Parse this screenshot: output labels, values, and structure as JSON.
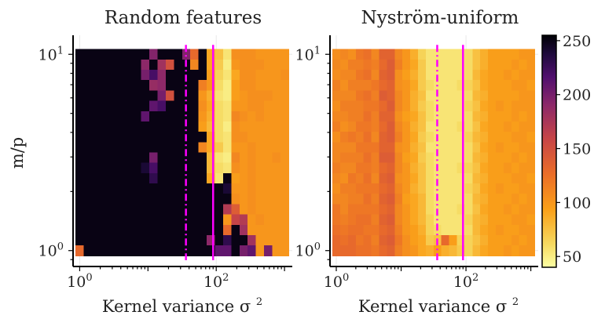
{
  "chart_data": [
    {
      "type": "heatmap",
      "title": "Random features",
      "xlabel": "Kernel variance σ²",
      "ylabel": "m/p",
      "xscale": "log",
      "yscale": "log",
      "xlim": [
        0.8,
        1300
      ],
      "ylim": [
        0.83,
        12.5
      ],
      "xticks": [
        {
          "base": "10",
          "exp": "0",
          "value": 1
        },
        {
          "base": "10",
          "exp": "2",
          "value": 100
        }
      ],
      "yticks": [
        {
          "base": "10",
          "exp": "0",
          "value": 1
        },
        {
          "base": "10",
          "exp": "1",
          "value": 10
        }
      ],
      "x_range": [
        1,
        1000
      ],
      "y_range": [
        1,
        10
      ],
      "grid": {
        "nx": 26,
        "ny": 20
      },
      "rows_top_to_bottom": [
        "250 250 250 250 250 250 250 250 250 195 250 250 250 195 130 250 90 75 55 105 105 105 100 100 100 100",
        "250 250 250 250 250 250 250 250 190 250 180 150 250 250 110 250 90 70 50 100 105 105 105 100 100 100",
        "250 250 250 250 250 250 250 250 200 220 190 250 250 250 250 250 95 65 55 90 105 105 100 100 100 105",
        "250 250 250 250 250 250 250 250 250 185 190 250 250 250 250 115 100 60 50 95 105 105 100 100 100 100",
        "250 250 250 250 250 250 250 250 250 250 200 150 250 250 250 100 85 55 50 95 100 105 105 105 100 100",
        "250 250 250 250 250 250 250 250 250 210 220 250 250 250 250 105 90 60 55 100 100 105 105 100 100 100",
        "250 250 250 250 250 250 250 250 210 250 250 250 250 250 250 100 85 60 55 110 105 100 105 100 100 100",
        "250 250 250 250 250 250 250 250 250 250 250 250 250 250 250 95 80 60 50 105 100 100 100 100 100 100",
        "250 250 250 250 250 250 250 250 250 250 250 250 250 250 250 250 90 60 55 105 105 100 100 100 100 100",
        "250 250 250 250 250 250 250 250 250 250 250 250 250 250 250 110 90 70 55 100 100 105 100 100 100 100",
        "250 250 250 250 250 250 250 250 250 200 250 250 250 250 250 250 80 55 50 110 100 105 100 100 105 100",
        "250 250 250 250 250 250 250 250 240 220 250 250 250 250 250 250 80 60 55 105 100 105 100 100 100 100",
        "250 250 250 250 250 250 250 250 250 230 250 250 250 250 250 250 90 55 250 95 100 105 100 100 100 100",
        "250 250 250 250 250 250 250 250 250 250 250 250 250 250 250 250 250 250 240 100 100 105 100 100 100 100",
        "250 250 250 250 250 250 250 250 250 250 250 250 250 250 250 250 250 250 250 105 100 105 100 100 100 100",
        "250 250 250 250 250 250 250 250 250 250 250 250 250 250 250 250 250 250 170 140 100 105 100 100 100 100",
        "250 250 250 250 250 250 250 250 250 250 250 250 250 250 250 250 250 250 100 160 170 100 105 100 100 100",
        "250 250 250 250 250 250 250 250 250 250 250 250 250 250 250 250 250 250 130 250 180 100 100 100 100 100",
        "250 250 250 250 250 250 250 250 250 250 250 250 250 250 250 250 190 250 230 250 250 180 100 100 100 100",
        "130 250 250 250 250 250 250 250 250 250 250 250 250 250 250 250 250 210 210 250 200 210 100 200 100 100"
      ],
      "vlines": [
        {
          "x": 36,
          "style": "dashdot"
        },
        {
          "x": 90,
          "style": "solid"
        }
      ]
    },
    {
      "type": "heatmap",
      "title": "Nyström-uniform",
      "xlabel": "Kernel variance σ²",
      "xscale": "log",
      "yscale": "log",
      "xlim": [
        0.8,
        1300
      ],
      "ylim": [
        0.83,
        12.5
      ],
      "xticks": [
        {
          "base": "10",
          "exp": "0",
          "value": 1
        },
        {
          "base": "10",
          "exp": "2",
          "value": 100
        }
      ],
      "yticks": [
        {
          "base": "10",
          "exp": "0",
          "value": 1
        },
        {
          "base": "10",
          "exp": "1",
          "value": 10
        }
      ],
      "x_range": [
        1,
        1000
      ],
      "y_range": [
        1,
        10
      ],
      "grid": {
        "nx": 26,
        "ny": 20
      },
      "rows_top_to_bottom": [
        "105 110 105 120 125 110 135 135 110 100 85 65 55 55 55 55 55 60 75 85 95 95 95 95 100 100",
        "110 105 115 115 120 115 130 140 115 100 90 70 55 55 55 55 55 60 75 85 95 95 95 100 95 100",
        "105 110 110 120 125 110 135 140 105 95 85 70 55 55 55 55 55 60 80 90 95 95 100 95 100 100",
        "115 105 115 115 115 120 130 135 105 100 90 70 60 55 55 55 60 65 75 90 95 95 95 100 100 95",
        "110 110 110 120 125 115 140 135 110 100 85 75 55 55 55 55 55 60 80 85 95 95 95 95 100 100",
        "105 115 115 115 120 120 130 140 110 100 85 70 60 55 55 55 55 65 75 90 95 100 95 100 100 100",
        "110 110 115 115 125 115 135 135 105 95 90 75 60 55 55 55 55 60 80 85 95 95 95 100 95 100",
        "115 105 110 120 120 115 130 140 110 100 85 75 55 55 55 55 60 60 75 90 95 95 100 95 100 100",
        "105 115 120 115 125 110 135 140 115 100 90 70 60 55 55 55 55 65 80 85 95 95 95 100 100 95",
        "110 110 110 120 120 120 135 135 105 100 85 75 55 55 55 55 55 60 75 90 95 100 95 95 100 100",
        "110 115 115 115 125 115 140 140 110 95 90 70 60 55 55 55 55 60 80 85 95 95 95 100 95 100",
        "115 110 110 120 120 115 130 135 110 100 85 75 60 55 55 55 60 65 75 90 95 95 100 95 100 100",
        "110 105 120 115 125 110 135 140 105 100 90 75 60 55 55 55 55 60 80 85 95 95 95 100 100 95",
        "105 115 115 120 120 120 130 135 110 100 85 75 60 55 55 55 55 65 75 90 95 100 95 95 100 100",
        "110 110 115 115 125 115 135 140 115 95 90 80 60 55 55 55 55 60 80 85 95 95 95 100 95 100",
        "120 110 120 120 120 120 130 135 110 100 90 80 60 55 55 55 60 60 75 90 95 95 100 95 100 100",
        "120 115 120 125 125 115 135 140 110 100 90 80 65 55 55 55 55 65 80 85 95 95 95 100 100 95",
        "125 120 125 125 120 120 130 135 115 100 95 85 65 60 55 55 55 60 80 90 95 100 95 95 100 100",
        "130 125 130 120 125 115 135 140 120 105 95 90 70 75 130 95 65 65 75 85 95 95 95 100 95 100",
        "130 130 130 125 125 120 130 135 115 105 100 90 85 95 85 80 70 65 80 90 95 95 100 95 100 100"
      ],
      "vlines": [
        {
          "x": 36,
          "style": "dashdot"
        },
        {
          "x": 90,
          "style": "solid"
        }
      ]
    }
  ],
  "colorbar": {
    "colormap": "inferno_r",
    "vmin": 40,
    "vmax": 255,
    "ticks": [
      "250",
      "200",
      "150",
      "100",
      "50"
    ],
    "tick_values": [
      250,
      200,
      150,
      100,
      50
    ]
  },
  "colors": {
    "vline": "#ff00ff",
    "axis": "#000000"
  }
}
